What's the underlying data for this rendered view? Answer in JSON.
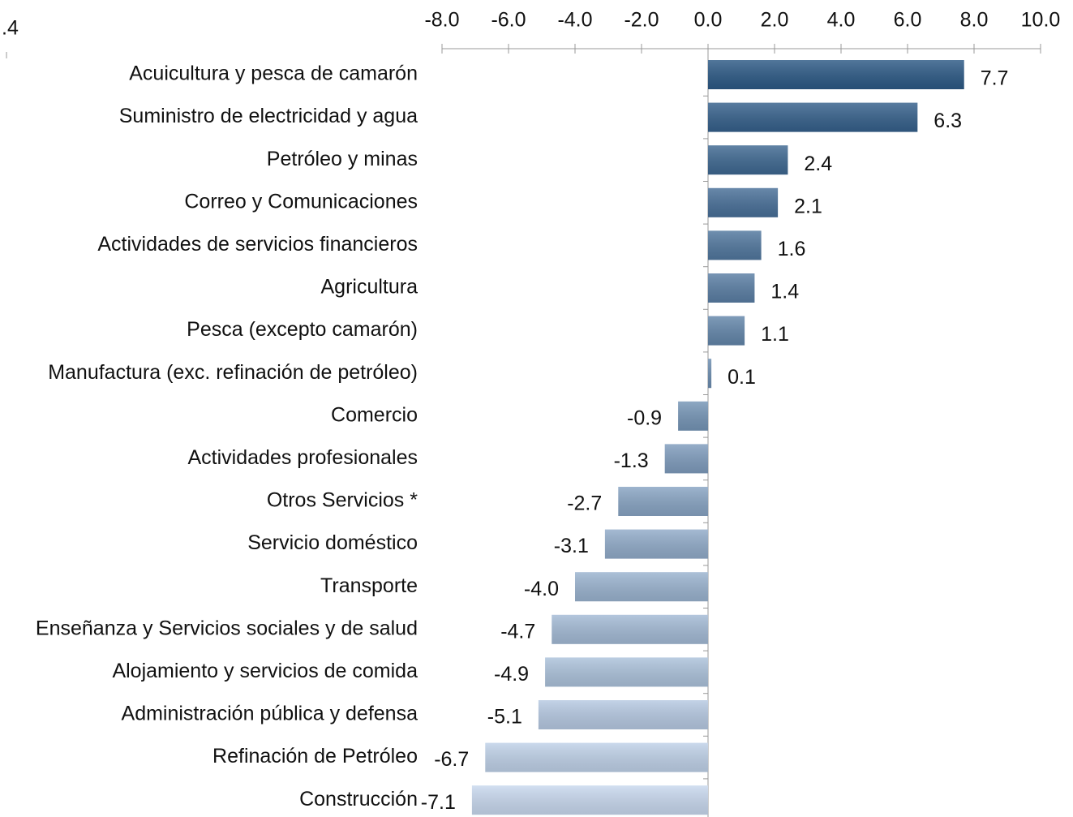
{
  "chart_data": {
    "type": "barh",
    "corner_text": ".4",
    "categories": [
      "Acuicultura y pesca de camarón",
      "Suministro de electricidad y agua",
      "Petróleo y minas",
      "Correo y Comunicaciones",
      "Actividades de servicios financieros",
      "Agricultura",
      "Pesca (excepto camarón)",
      "Manufactura (exc. refinación de petróleo)",
      "Comercio",
      "Actividades profesionales",
      "Otros Servicios *",
      "Servicio doméstico",
      "Transporte",
      "Enseñanza  y Servicios sociales y de salud",
      "Alojamiento y servicios de comida ",
      "Administración pública y defensa",
      "Refinación de Petróleo",
      "Construcción"
    ],
    "values": [
      7.7,
      6.3,
      2.4,
      2.1,
      1.6,
      1.4,
      1.1,
      0.1,
      -0.9,
      -1.3,
      -2.7,
      -3.1,
      -4.0,
      -4.7,
      -4.9,
      -5.1,
      -6.7,
      -7.1
    ],
    "value_labels": [
      "7.7",
      "6.3",
      "2.4",
      "2.1",
      "1.6",
      "1.4",
      "1.1",
      "0.1",
      "-0.9",
      "-1.3",
      "-2.7",
      "-3.1",
      "-4.0",
      "-4.7",
      "-4.9",
      "-5.1",
      "-6.7",
      "-7.1"
    ],
    "xlim": [
      -8,
      10
    ],
    "xticks": [
      {
        "value": -8,
        "label": "-8.0"
      },
      {
        "value": -6,
        "label": "-6.0"
      },
      {
        "value": -4,
        "label": "-4.0"
      },
      {
        "value": -2,
        "label": "-2.0"
      },
      {
        "value": 0,
        "label": "0.0"
      },
      {
        "value": 2,
        "label": "2.0"
      },
      {
        "value": 4,
        "label": "4.0"
      },
      {
        "value": 6,
        "label": "6.0"
      },
      {
        "value": 8,
        "label": "8.0"
      },
      {
        "value": 10,
        "label": "10.0"
      }
    ],
    "color_start": "#2c5985",
    "color_end": "#c8d8ee",
    "grid": false
  }
}
